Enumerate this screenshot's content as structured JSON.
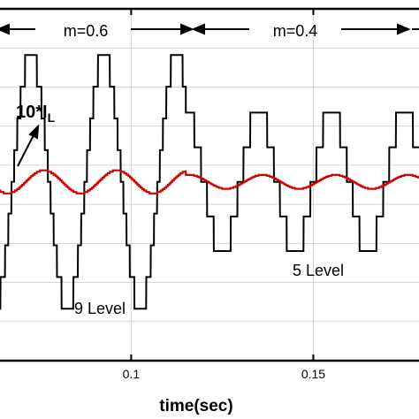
{
  "chart_data": {
    "type": "line",
    "title": "",
    "xlabel": "time(sec)",
    "ylabel": "",
    "xlim": [
      0.064,
      0.179
    ],
    "ylim": [
      -1.55,
      1.5
    ],
    "x_ticks": [
      0.1,
      0.15
    ],
    "x_tick_labels": [
      "0.1",
      "0.15"
    ],
    "grid": true,
    "annotations": {
      "m1": "m=0.6",
      "m2": "m=0.4",
      "current_label": "10*I",
      "current_sub": "L",
      "nine_level": "9 Level",
      "five_level": "5 Level"
    },
    "series": [
      {
        "name": "",
        "color": "#000000",
        "segments": [
          {
            "t_start": 0.064,
            "t_end": 0.115,
            "frequency_hz": 50,
            "levels": 4,
            "amplitude": 1.1,
            "phase_deg": 225
          },
          {
            "t_start": 0.115,
            "t_end": 0.179,
            "frequency_hz": 50,
            "levels": 2,
            "amplitude": 0.6,
            "phase_deg": 180
          }
        ]
      },
      {
        "name": "",
        "color": "#d40000",
        "segments": [
          {
            "t_start": 0.064,
            "t_end": 0.115,
            "frequency_hz": 50,
            "amplitude": 0.1,
            "phase_deg": 160
          },
          {
            "t_start": 0.115,
            "t_end": 0.179,
            "frequency_hz": 50,
            "amplitude": 0.06,
            "phase_deg": 160
          }
        ]
      }
    ]
  }
}
